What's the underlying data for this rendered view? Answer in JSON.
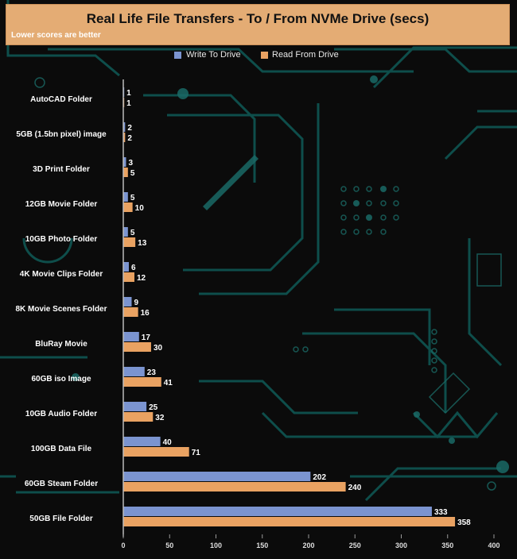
{
  "chart_data": {
    "type": "bar",
    "orientation": "horizontal",
    "title": "Real Life File Transfers - To / From NVMe Drive (secs)",
    "subtitle": "Lower scores are better",
    "categories": [
      "AutoCAD Folder",
      "5GB (1.5bn pixel) image",
      "3D Print Folder",
      "12GB Movie Folder",
      "10GB Photo Folder",
      "4K Movie Clips Folder",
      "8K Movie Scenes Folder",
      "BluRay Movie",
      "60GB iso Image",
      "10GB Audio Folder",
      "100GB Data File",
      "60GB Steam Folder",
      "50GB File Folder"
    ],
    "series": [
      {
        "name": "Write To  Drive",
        "color": "#7b94d0",
        "values": [
          1,
          2,
          3,
          5,
          5,
          6,
          9,
          17,
          23,
          25,
          40,
          202,
          333
        ]
      },
      {
        "name": "Read From  Drive",
        "color": "#e9a262",
        "values": [
          1,
          2,
          5,
          10,
          13,
          12,
          16,
          30,
          41,
          32,
          71,
          240,
          358
        ]
      }
    ],
    "xlim": [
      0,
      400
    ],
    "xticks": [
      0,
      50,
      100,
      150,
      200,
      250,
      300,
      350,
      400
    ],
    "legend_position": "top-center",
    "grid": false
  }
}
